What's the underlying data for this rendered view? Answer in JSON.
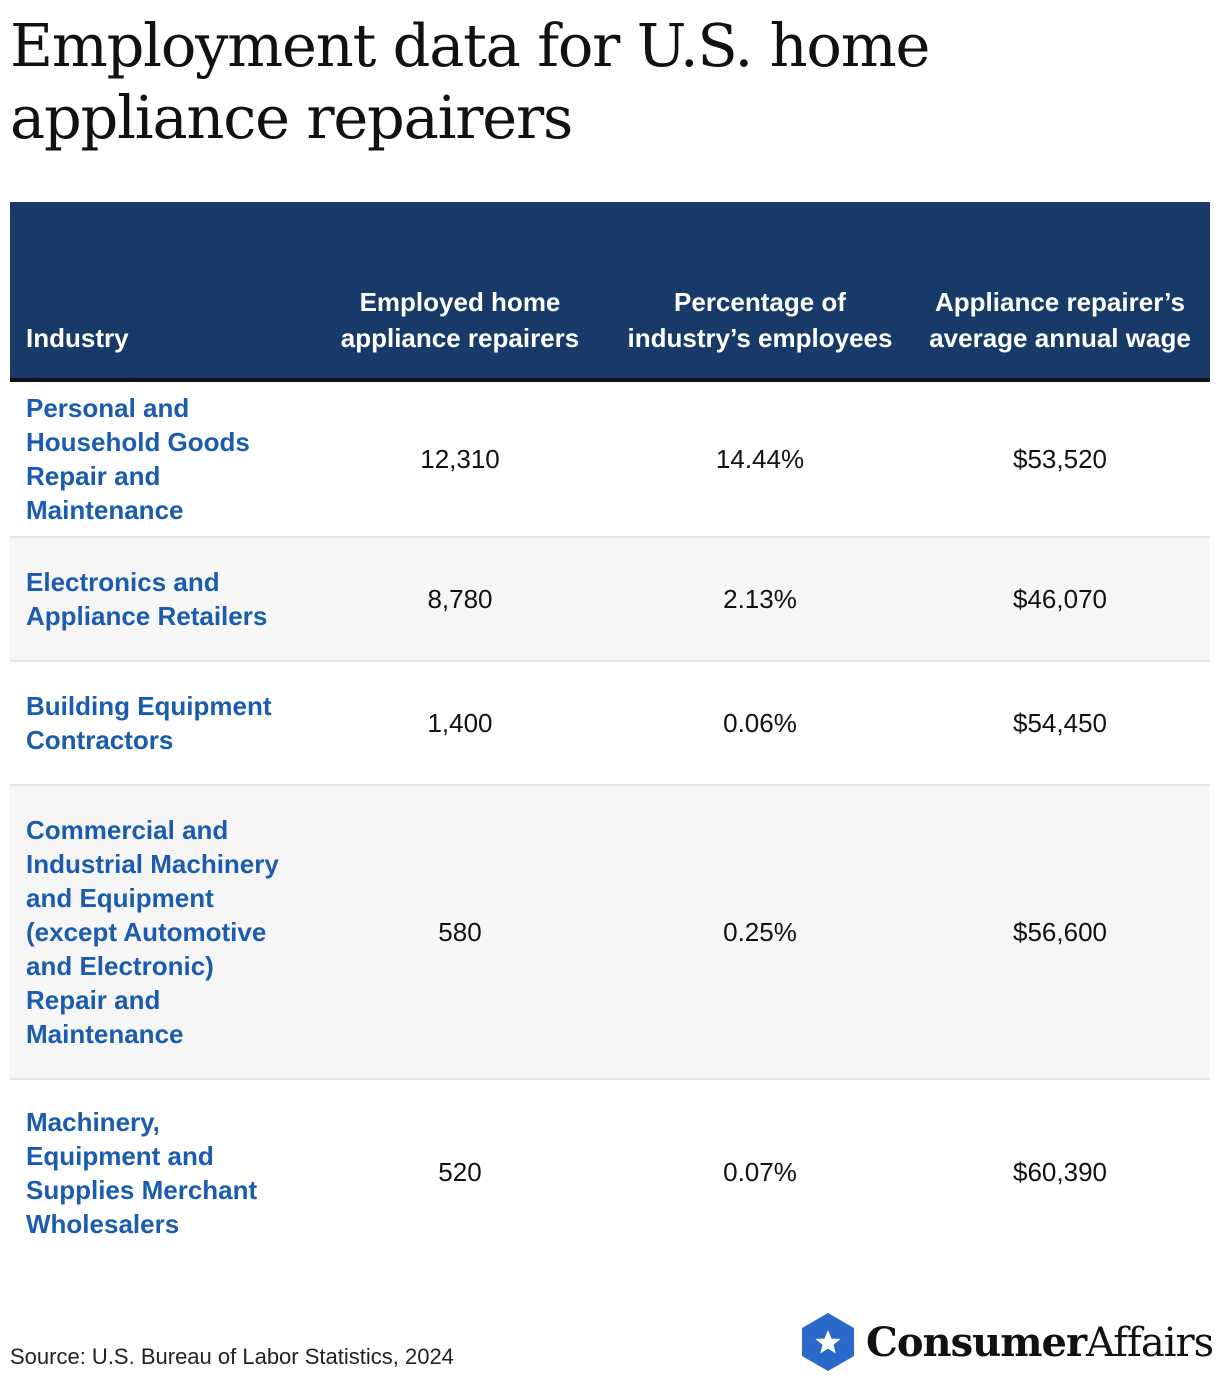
{
  "title": "Employment data for U.S. home appliance repairers",
  "chart_data": {
    "type": "table",
    "columns": [
      "Industry",
      "Employed home appliance repairers",
      "Percentage of industry’s employees",
      "Appliance repairer’s average annual wage"
    ],
    "rows": [
      [
        "Personal and Household Goods Repair and Maintenance",
        "12,310",
        "14.44%",
        "$53,520"
      ],
      [
        "Electronics and Appliance Retailers",
        "8,780",
        "2.13%",
        "$46,070"
      ],
      [
        "Building Equipment Contractors",
        "1,400",
        "0.06%",
        "$54,450"
      ],
      [
        "Commercial and Industrial Machinery and Equipment (except Automotive and Electronic) Repair and Maintenance",
        "580",
        "0.25%",
        "$56,600"
      ],
      [
        "Machinery, Equipment and Supplies Merchant Wholesalers",
        "520",
        "0.07%",
        "$60,390"
      ]
    ]
  },
  "footer": {
    "source": "Source: U.S. Bureau of Labor Statistics, 2024",
    "logo_bold": "Consumer",
    "logo_regular": "Affairs",
    "logo_icon": "star-shield-icon"
  },
  "colors": {
    "header_bg": "#173a68",
    "industry_text": "#1b5cae",
    "logo_blue": "#2a69c9"
  }
}
